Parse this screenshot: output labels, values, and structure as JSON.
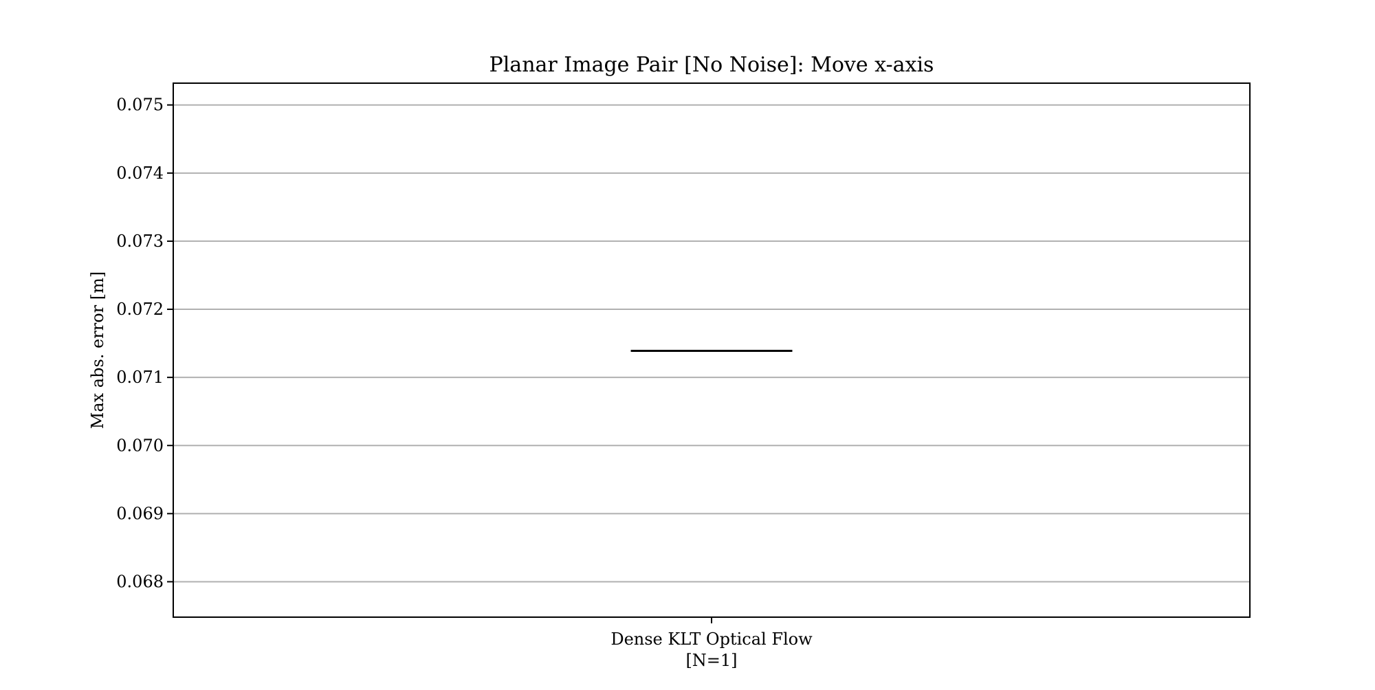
{
  "chart_data": {
    "type": "box",
    "title": "Planar Image Pair [No Noise]: Move x-axis",
    "xlabel": "",
    "ylabel": "Max abs. error [m]",
    "ylim": [
      0.06748,
      0.07532
    ],
    "yticks": [
      "0.068",
      "0.069",
      "0.070",
      "0.071",
      "0.072",
      "0.073",
      "0.074",
      "0.075"
    ],
    "grid": "horizontal",
    "categories": [
      {
        "label": "Dense KLT Optical Flow",
        "sublabel": "[N=1]"
      }
    ],
    "series": [
      {
        "category": "Dense KLT Optical Flow",
        "median": 0.07139
      }
    ],
    "colors": {
      "grid": "#b0b0b0",
      "axes": "#000000",
      "median": "#000000"
    }
  }
}
